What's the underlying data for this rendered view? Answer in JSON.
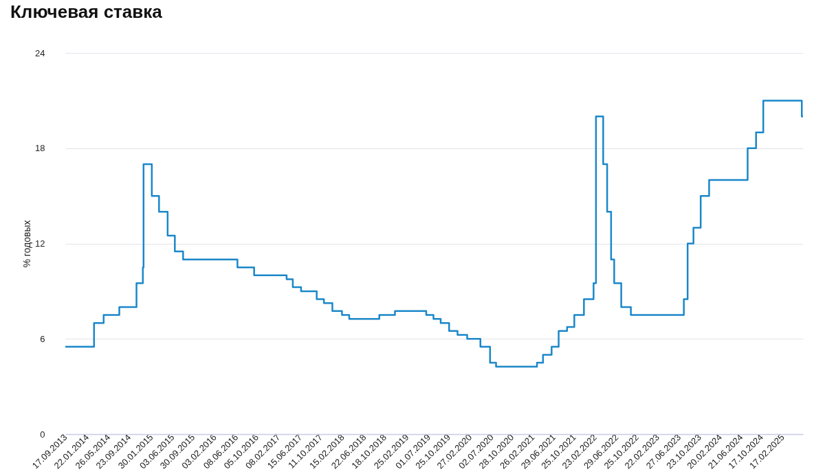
{
  "chart_data": {
    "type": "step",
    "title": "Ключевая ставка",
    "ylabel": "% годовых",
    "xlim": [
      "2013-09-17",
      "2025-06-16"
    ],
    "ylim": [
      0,
      24
    ],
    "yticks": [
      0,
      6,
      12,
      18,
      24
    ],
    "grid": "y",
    "xticks": [
      {
        "value": "2013-09-17",
        "label": "17.09.2013"
      },
      {
        "value": "2014-01-22",
        "label": "22.01.2014"
      },
      {
        "value": "2014-05-26",
        "label": "26.05.2014"
      },
      {
        "value": "2014-09-23",
        "label": "23.09.2014"
      },
      {
        "value": "2015-01-30",
        "label": "30.01.2015"
      },
      {
        "value": "2015-06-03",
        "label": "03.06.2015"
      },
      {
        "value": "2015-09-30",
        "label": "30.09.2015"
      },
      {
        "value": "2016-02-03",
        "label": "03.02.2016"
      },
      {
        "value": "2016-06-08",
        "label": "08.06.2016"
      },
      {
        "value": "2016-10-05",
        "label": "05.10.2016"
      },
      {
        "value": "2017-02-08",
        "label": "08.02.2017"
      },
      {
        "value": "2017-06-15",
        "label": "15.06.2017"
      },
      {
        "value": "2017-10-11",
        "label": "11.10.2017"
      },
      {
        "value": "2018-02-15",
        "label": "15.02.2018"
      },
      {
        "value": "2018-06-22",
        "label": "22.06.2018"
      },
      {
        "value": "2018-10-18",
        "label": "18.10.2018"
      },
      {
        "value": "2019-02-25",
        "label": "25.02.2019"
      },
      {
        "value": "2019-07-01",
        "label": "01.07.2019"
      },
      {
        "value": "2019-10-25",
        "label": "25.10.2019"
      },
      {
        "value": "2020-02-27",
        "label": "27.02.2020"
      },
      {
        "value": "2020-07-02",
        "label": "02.07.2020"
      },
      {
        "value": "2020-10-28",
        "label": "28.10.2020"
      },
      {
        "value": "2021-02-26",
        "label": "26.02.2021"
      },
      {
        "value": "2021-06-29",
        "label": "29.06.2021"
      },
      {
        "value": "2021-10-25",
        "label": "25.10.2021"
      },
      {
        "value": "2022-02-23",
        "label": "23.02.2022"
      },
      {
        "value": "2022-06-29",
        "label": "29.06.2022"
      },
      {
        "value": "2022-10-25",
        "label": "25.10.2022"
      },
      {
        "value": "2023-02-22",
        "label": "22.02.2023"
      },
      {
        "value": "2023-06-27",
        "label": "27.06.2023"
      },
      {
        "value": "2023-10-23",
        "label": "23.10.2023"
      },
      {
        "value": "2024-02-20",
        "label": "20.02.2024"
      },
      {
        "value": "2024-06-21",
        "label": "21.06.2024"
      },
      {
        "value": "2024-10-17",
        "label": "17.10.2024"
      },
      {
        "value": "2025-02-17",
        "label": "17.02.2025"
      }
    ],
    "series": [
      {
        "color": "#1a87c9",
        "x": [
          "2013-09-17",
          "2014-03-03",
          "2014-04-28",
          "2014-07-28",
          "2014-11-05",
          "2014-12-12",
          "2014-12-16",
          "2015-02-02",
          "2015-03-16",
          "2015-05-05",
          "2015-06-16",
          "2015-08-03",
          "2016-06-14",
          "2016-09-19",
          "2017-03-27",
          "2017-05-02",
          "2017-06-19",
          "2017-09-18",
          "2017-10-30",
          "2017-12-18",
          "2018-02-12",
          "2018-03-26",
          "2018-09-17",
          "2018-12-17",
          "2019-06-17",
          "2019-07-29",
          "2019-09-09",
          "2019-10-28",
          "2019-12-16",
          "2020-02-10",
          "2020-04-27",
          "2020-06-22",
          "2020-07-27",
          "2021-03-22",
          "2021-04-26",
          "2021-06-15",
          "2021-07-26",
          "2021-09-13",
          "2021-10-25",
          "2021-12-20",
          "2022-02-14",
          "2022-02-28",
          "2022-04-11",
          "2022-05-04",
          "2022-05-27",
          "2022-06-14",
          "2022-07-25",
          "2022-09-19",
          "2023-07-24",
          "2023-08-15",
          "2023-09-18",
          "2023-10-30",
          "2023-12-18",
          "2024-07-29",
          "2024-09-16",
          "2024-10-28",
          "2025-06-09",
          "2025-06-16"
        ],
        "values": [
          5.5,
          7,
          7.5,
          8,
          9.5,
          10.5,
          17,
          15,
          14,
          12.5,
          11.5,
          11,
          10.5,
          10,
          9.75,
          9.25,
          9,
          8.5,
          8.25,
          7.75,
          7.5,
          7.25,
          7.5,
          7.75,
          7.5,
          7.25,
          7,
          6.5,
          6.25,
          6,
          5.5,
          4.5,
          4.25,
          4.5,
          5,
          5.5,
          6.5,
          6.75,
          7.5,
          8.5,
          9.5,
          20,
          17,
          14,
          11,
          9.5,
          8,
          7.5,
          8.5,
          12,
          13,
          15,
          16,
          18,
          19,
          21,
          20,
          20
        ]
      }
    ]
  }
}
